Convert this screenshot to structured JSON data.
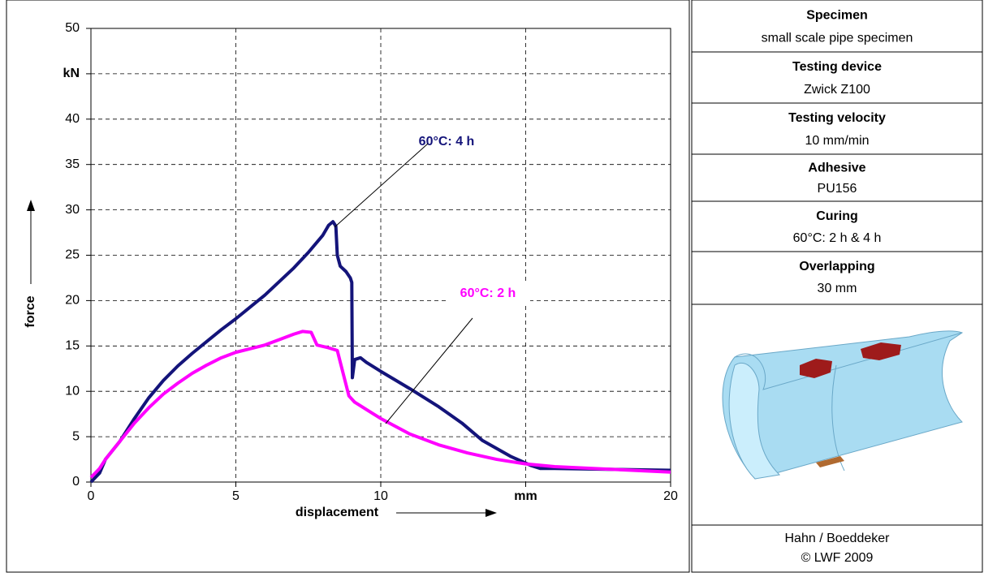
{
  "chart_data": {
    "type": "line",
    "xlabel": "displacement",
    "ylabel": "force",
    "xlim": [
      0,
      20
    ],
    "xticks": [
      0,
      5,
      10,
      {
        "value": 15,
        "label": "mm"
      },
      20
    ],
    "ylim": [
      0,
      50
    ],
    "yticks": [
      0,
      5,
      10,
      15,
      20,
      25,
      30,
      35,
      40,
      {
        "value": 45,
        "label": "kN"
      },
      50
    ],
    "grid": true,
    "series": [
      {
        "name": "60°C: 4 h",
        "color": "#14147a",
        "x": [
          0,
          0.3,
          0.5,
          1,
          1.5,
          2,
          2.5,
          3,
          3.5,
          4,
          4.5,
          5,
          5.5,
          6,
          6.5,
          7,
          7.5,
          8,
          8.2,
          8.35,
          8.45,
          8.5,
          8.6,
          8.8,
          8.95,
          9.0,
          9.02,
          9.1,
          9.3,
          9.5,
          10,
          11,
          12,
          12.8,
          13.5,
          14.5,
          15.2,
          15.5,
          16,
          18,
          20
        ],
        "values": [
          0,
          1,
          2.5,
          4.5,
          7,
          9.3,
          11.2,
          12.8,
          14.2,
          15.5,
          16.8,
          18,
          19.3,
          20.6,
          22.1,
          23.6,
          25.3,
          27.2,
          28.3,
          28.7,
          28.2,
          25,
          23.8,
          23.2,
          22.5,
          22,
          11.5,
          13.5,
          13.7,
          13.2,
          12.2,
          10.3,
          8.3,
          6.5,
          4.6,
          2.8,
          1.8,
          1.5,
          1.5,
          1.4,
          1.3
        ]
      },
      {
        "name": "60°C: 2 h",
        "color": "#ff00ff",
        "x": [
          0,
          0.3,
          0.5,
          1,
          1.5,
          2,
          2.5,
          3,
          3.5,
          4,
          4.5,
          5,
          5.5,
          6,
          6.5,
          7,
          7.3,
          7.6,
          7.8,
          8.2,
          8.5,
          8.7,
          8.9,
          9.1,
          10,
          11,
          12,
          13,
          14,
          15,
          16,
          18,
          20
        ],
        "values": [
          0.5,
          1.5,
          2.5,
          4.5,
          6.5,
          8.2,
          9.7,
          10.9,
          12,
          12.9,
          13.7,
          14.3,
          14.7,
          15.1,
          15.7,
          16.3,
          16.6,
          16.5,
          15.1,
          14.8,
          14.5,
          12,
          9.5,
          8.8,
          7,
          5.3,
          4.1,
          3.2,
          2.5,
          2,
          1.7,
          1.4,
          1.1
        ]
      }
    ]
  },
  "panel": {
    "items": [
      {
        "heading": "Specimen",
        "value": "small scale pipe specimen"
      },
      {
        "heading": "Testing device",
        "value": "Zwick Z100"
      },
      {
        "heading": "Testing velocity",
        "value": "10 mm/min"
      },
      {
        "heading": "Adhesive",
        "value": "PU156"
      },
      {
        "heading": "Curing",
        "value": "60°C: 2 h & 4 h"
      },
      {
        "heading": "Overlapping",
        "value": "30 mm"
      }
    ],
    "footer": [
      "Hahn / Boeddeker",
      "© LWF 2009"
    ]
  }
}
